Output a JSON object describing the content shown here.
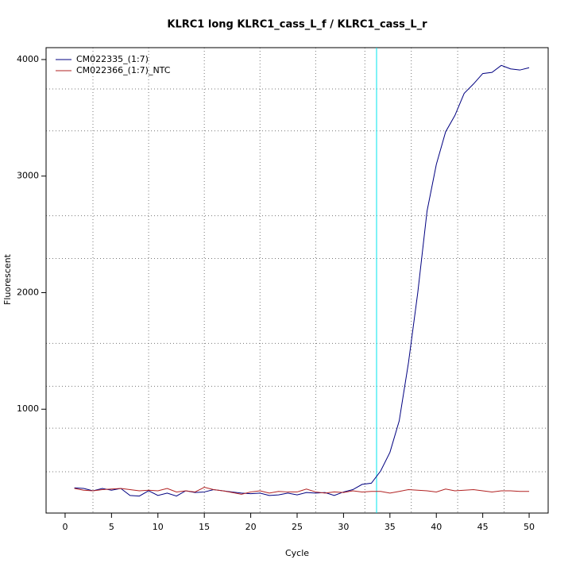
{
  "chart_data": {
    "type": "line",
    "title": "KLRC1 long KLRC1_cass_L_f / KLRC1_cass_L_r",
    "x_label": "Cycle",
    "y_label": "Fluorescent",
    "x": [
      1,
      2,
      3,
      4,
      5,
      6,
      7,
      8,
      9,
      10,
      11,
      12,
      13,
      14,
      15,
      16,
      17,
      18,
      19,
      20,
      21,
      22,
      23,
      24,
      25,
      26,
      27,
      28,
      29,
      30,
      31,
      32,
      33,
      34,
      35,
      36,
      37,
      38,
      39,
      40,
      41,
      42,
      43,
      44,
      45,
      46,
      47,
      48,
      49,
      50
    ],
    "series": [
      {
        "name": "CM022335_(1:7)",
        "color": "#000080",
        "values": [
          325,
          320,
          300,
          320,
          305,
          320,
          260,
          255,
          300,
          260,
          280,
          255,
          300,
          285,
          290,
          310,
          300,
          290,
          280,
          275,
          280,
          260,
          265,
          280,
          265,
          285,
          280,
          285,
          260,
          290,
          310,
          355,
          365,
          470,
          630,
          900,
          1400,
          2000,
          2700,
          3100,
          3380,
          3520,
          3710,
          3790,
          3880,
          3890,
          3950,
          3920,
          3910,
          3930
        ]
      },
      {
        "name": "CM022366_(1:7)_NTC",
        "color": "#b22222",
        "values": [
          320,
          305,
          300,
          310,
          315,
          320,
          310,
          300,
          305,
          300,
          320,
          290,
          300,
          290,
          330,
          310,
          300,
          285,
          270,
          290,
          300,
          280,
          295,
          290,
          290,
          315,
          290,
          280,
          290,
          285,
          300,
          290,
          295,
          295,
          280,
          295,
          310,
          305,
          300,
          290,
          315,
          300,
          305,
          310,
          300,
          290,
          300,
          300,
          295,
          295
        ]
      }
    ],
    "threshold_x": 33.56,
    "threshold_color": "#00e5ee",
    "xlim": [
      -2.05,
      52.05
    ],
    "ylim": [
      109,
      4102
    ],
    "xticks": [
      0,
      5,
      10,
      15,
      20,
      25,
      30,
      35,
      40,
      45,
      50
    ],
    "yticks": [
      1000,
      2000,
      3000,
      4000
    ],
    "xgrid": [
      3,
      9,
      15,
      21,
      27,
      32.3,
      37.3,
      42.3,
      47.3
    ],
    "ygrid": [
      463,
      837,
      1197,
      1565,
      2293,
      2660,
      3388,
      3748
    ],
    "legend": "top-left"
  }
}
